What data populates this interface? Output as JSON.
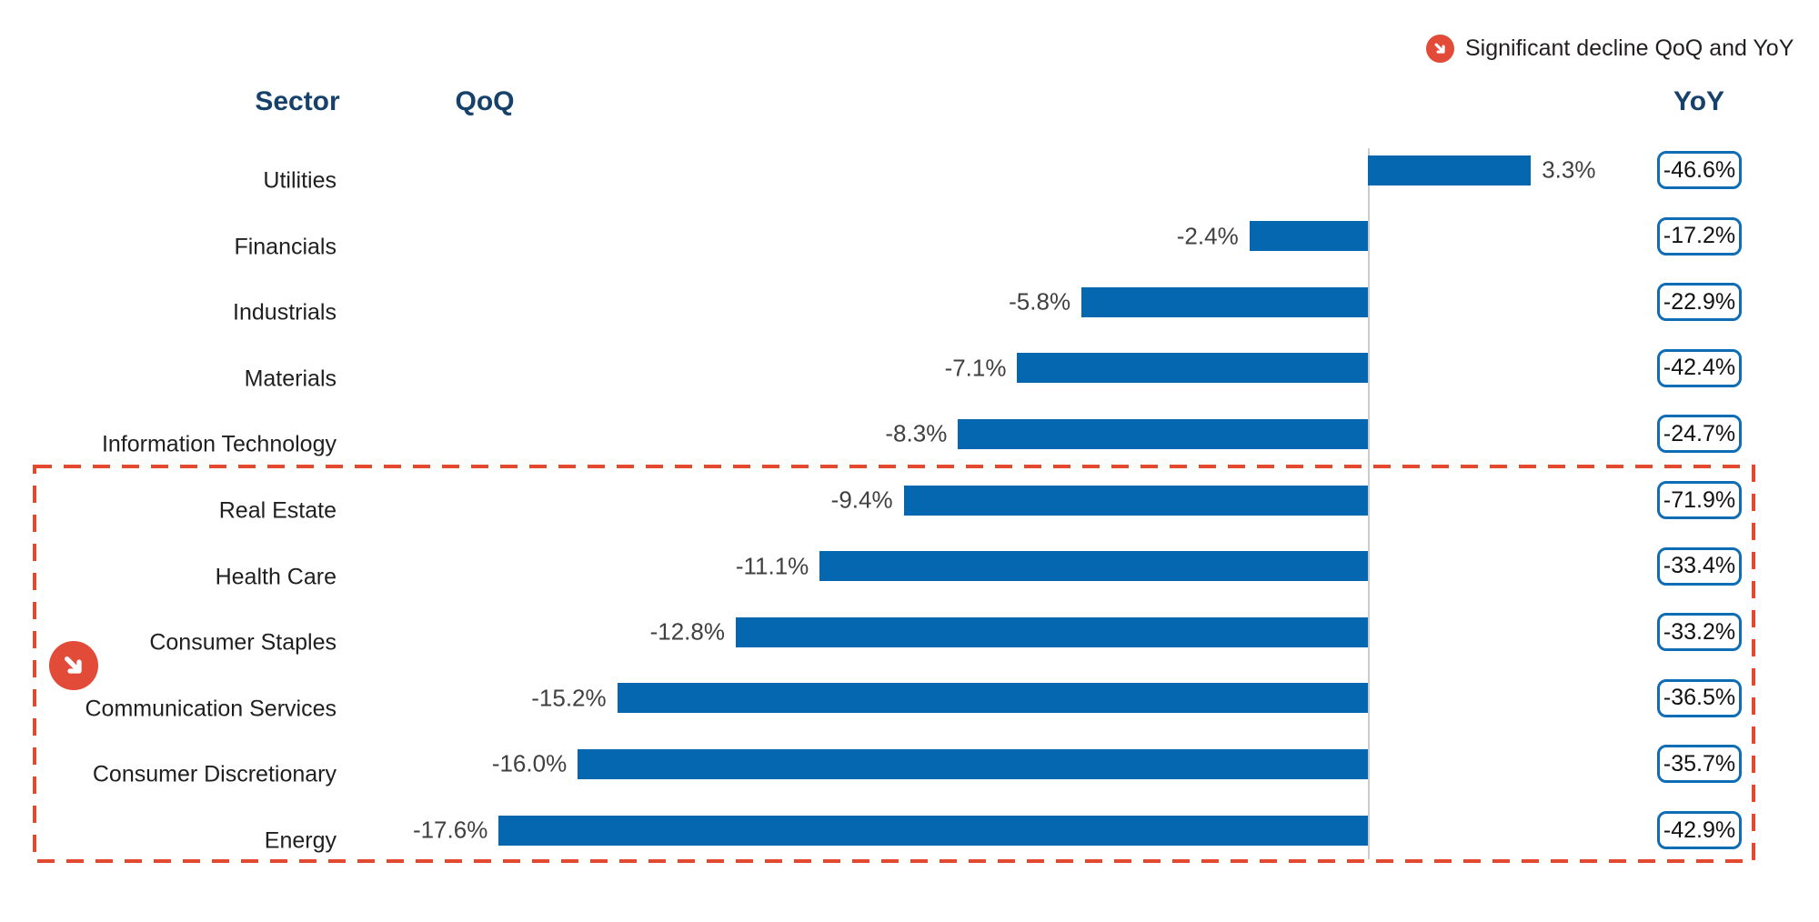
{
  "legend": {
    "label": "Significant decline QoQ and YoY",
    "icon": "down-right-arrow-icon"
  },
  "headers": {
    "sector": "Sector",
    "qoq": "QoQ",
    "yoy": "YoY"
  },
  "colors": {
    "bar_blue": "#0667b1",
    "yoy_box_border": "#0e6db5",
    "badge_red": "#e14b38",
    "dashed_box_red": "#e2492f",
    "header_navy": "#15416b",
    "axis_gray": "#cccccc",
    "value_text": "#404040",
    "label_text": "#1f1f1f"
  },
  "chart_data": {
    "type": "bar",
    "orientation": "horizontal",
    "title": "",
    "xlabel": "",
    "ylabel": "",
    "axis": {
      "zero_line": true,
      "grid": false,
      "qoq_range_pct": [
        -20,
        5
      ]
    },
    "legend_position": "top-right",
    "annotation": "Significant decline QoQ and YoY",
    "categories": [
      "Utilities",
      "Financials",
      "Industrials",
      "Materials",
      "Information Technology",
      "Real Estate",
      "Health Care",
      "Consumer Staples",
      "Communication Services",
      "Consumer Discretionary",
      "Energy"
    ],
    "series": [
      {
        "name": "QoQ",
        "values": [
          3.3,
          -2.4,
          -5.8,
          -7.1,
          -8.3,
          -9.4,
          -11.1,
          -12.8,
          -15.2,
          -16.0,
          -17.6
        ]
      },
      {
        "name": "YoY",
        "values": [
          -46.6,
          -17.2,
          -22.9,
          -42.4,
          -24.7,
          -71.9,
          -33.4,
          -33.2,
          -36.5,
          -35.7,
          -42.9
        ]
      }
    ],
    "highlighted_categories": [
      "Real Estate",
      "Health Care",
      "Consumer Staples",
      "Communication Services",
      "Consumer Discretionary",
      "Energy"
    ],
    "rows": [
      {
        "sector": "Utilities",
        "qoq": 3.3,
        "qoq_label": "3.3%",
        "yoy": -46.6,
        "yoy_label": "-46.6%",
        "highlighted": false
      },
      {
        "sector": "Financials",
        "qoq": -2.4,
        "qoq_label": "-2.4%",
        "yoy": -17.2,
        "yoy_label": "-17.2%",
        "highlighted": false
      },
      {
        "sector": "Industrials",
        "qoq": -5.8,
        "qoq_label": "-5.8%",
        "yoy": -22.9,
        "yoy_label": "-22.9%",
        "highlighted": false
      },
      {
        "sector": "Materials",
        "qoq": -7.1,
        "qoq_label": "-7.1%",
        "yoy": -42.4,
        "yoy_label": "-42.4%",
        "highlighted": false
      },
      {
        "sector": "Information Technology",
        "qoq": -8.3,
        "qoq_label": "-8.3%",
        "yoy": -24.7,
        "yoy_label": "-24.7%",
        "highlighted": false
      },
      {
        "sector": "Real Estate",
        "qoq": -9.4,
        "qoq_label": "-9.4%",
        "yoy": -71.9,
        "yoy_label": "-71.9%",
        "highlighted": true
      },
      {
        "sector": "Health Care",
        "qoq": -11.1,
        "qoq_label": "-11.1%",
        "yoy": -33.4,
        "yoy_label": "-33.4%",
        "highlighted": true
      },
      {
        "sector": "Consumer Staples",
        "qoq": -12.8,
        "qoq_label": "-12.8%",
        "yoy": -33.2,
        "yoy_label": "-33.2%",
        "highlighted": true
      },
      {
        "sector": "Communication Services",
        "qoq": -15.2,
        "qoq_label": "-15.2%",
        "yoy": -36.5,
        "yoy_label": "-36.5%",
        "highlighted": true
      },
      {
        "sector": "Consumer Discretionary",
        "qoq": -16.0,
        "qoq_label": "-16.0%",
        "yoy": -35.7,
        "yoy_label": "-35.7%",
        "highlighted": true
      },
      {
        "sector": "Energy",
        "qoq": -17.6,
        "qoq_label": "-17.6%",
        "yoy": -42.9,
        "yoy_label": "-42.9%",
        "highlighted": true
      }
    ]
  }
}
